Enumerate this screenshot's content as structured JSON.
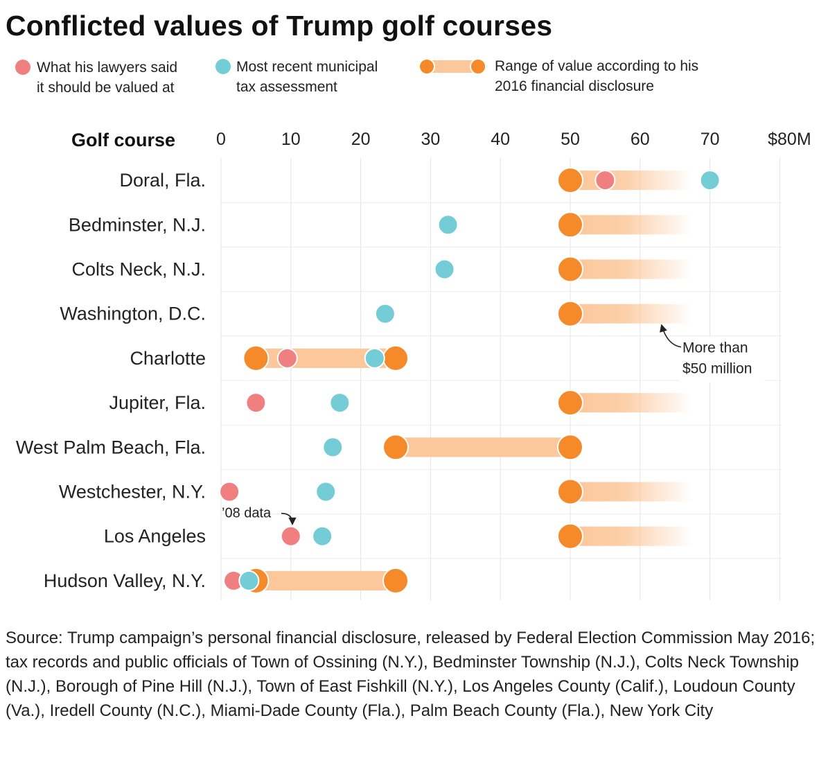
{
  "title": "Conflicted values of Trump golf courses",
  "legend": {
    "lawyers": {
      "line1": "What his lawyers said",
      "line2": "it should be valued at",
      "color": "#f08080"
    },
    "municipal": {
      "line1": "Most recent municipal",
      "line2": "tax assessment",
      "color": "#74cdd6"
    },
    "disclosure": {
      "line1": "Range of value according to his",
      "line2": "2016 financial disclosure",
      "color": "#f58a2a",
      "bar_color": "#fcc79a"
    }
  },
  "chart_data": {
    "type": "dot-range",
    "ylabel": "Golf course",
    "x_ticks": [
      "0",
      "10",
      "20",
      "30",
      "40",
      "50",
      "60",
      "70",
      "$80M"
    ],
    "xlim": [
      0,
      80
    ],
    "grid": true,
    "categories": [
      "Doral, Fla.",
      "Bedminster, N.J.",
      "Colts Neck, N.J.",
      "Washington, D.C.",
      "Charlotte",
      "Jupiter, Fla.",
      "West Palm Beach, Fla.",
      "Westchester, N.Y.",
      "Los Angeles",
      "Hudson Valley, N.Y."
    ],
    "series": [
      {
        "name": "Range of value according to his 2016 financial disclosure",
        "ranges": [
          [
            50,
            null
          ],
          [
            50,
            null
          ],
          [
            50,
            null
          ],
          [
            50,
            null
          ],
          [
            5,
            25
          ],
          [
            50,
            null
          ],
          [
            25,
            50
          ],
          [
            50,
            null
          ],
          [
            50,
            null
          ],
          [
            5,
            25
          ]
        ]
      },
      {
        "name": "What his lawyers said it should be valued at",
        "values": [
          55,
          null,
          null,
          null,
          9.5,
          5,
          null,
          1.2,
          10,
          1.8
        ]
      },
      {
        "name": "Most recent municipal tax assessment",
        "values": [
          70,
          32.5,
          32,
          23.5,
          22,
          17,
          16,
          15,
          14.5,
          4
        ]
      }
    ],
    "annotations": [
      {
        "text_line1": "More than",
        "text_line2": "$50 million",
        "category": "Washington, D.C."
      },
      {
        "text": "’08 data",
        "category": "Los Angeles"
      }
    ]
  },
  "source": "Source: Trump campaign’s personal financial disclosure, released by Federal Election Commission May 2016; tax records and public officials of Town of Ossining (N.Y.), Bedminster Township (N.J.), Colts Neck Township (N.J.), Borough of Pine Hill (N.J.), Town of East Fishkill (N.Y.), Los Angeles County (Calif.), Loudoun County (Va.), Iredell County (N.C.), Miami-Dade County (Fla.), Palm Beach County (Fla.), New York City"
}
